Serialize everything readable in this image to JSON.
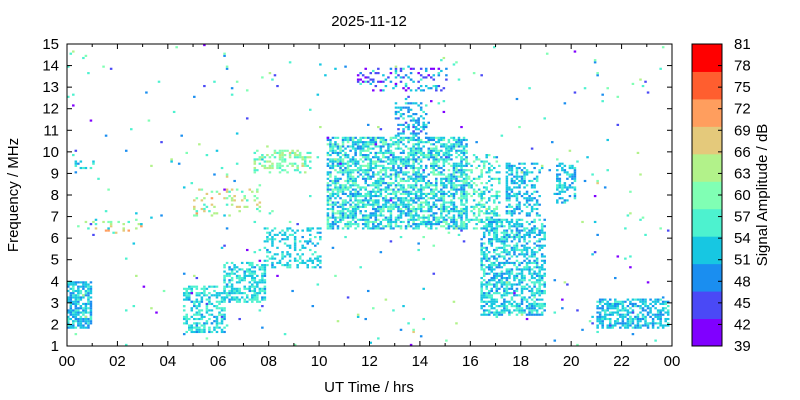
{
  "chart_data": {
    "type": "heatmap",
    "title": "2025-11-12",
    "xlabel": "UT Time / hrs",
    "ylabel": "Frequency / MHz",
    "colorbar_label": "Signal Amplitude / dB",
    "xlim": [
      0,
      24
    ],
    "ylim": [
      1,
      15
    ],
    "xticks": [
      "00",
      "02",
      "04",
      "06",
      "08",
      "10",
      "12",
      "14",
      "16",
      "18",
      "20",
      "22",
      "00"
    ],
    "yticks": [
      "1",
      "2",
      "3",
      "4",
      "5",
      "6",
      "7",
      "8",
      "9",
      "10",
      "11",
      "12",
      "13",
      "14",
      "15"
    ],
    "colorbar": {
      "ticks": [
        "39",
        "42",
        "45",
        "48",
        "51",
        "54",
        "57",
        "60",
        "63",
        "66",
        "69",
        "72",
        "75",
        "78",
        "81"
      ],
      "colors": [
        "#8000ff",
        "#4a49f6",
        "#1a8ef0",
        "#17c7e2",
        "#4df2cf",
        "#80ffb4",
        "#b2f28a",
        "#e4c97b",
        "#ff9e5e",
        "#ff5e2f",
        "#ff0000"
      ]
    },
    "clusters": [
      {
        "name": "early-low",
        "t": [
          0.0,
          0.9
        ],
        "f": [
          1.8,
          4.0
        ],
        "density": 0.75,
        "amp": [
          48,
          56
        ]
      },
      {
        "name": "scatter-09",
        "t": [
          0.3,
          1.3
        ],
        "f": [
          9.2,
          9.5
        ],
        "density": 0.35,
        "amp": [
          50,
          58
        ]
      },
      {
        "name": "scatter-06",
        "t": [
          1.0,
          3.2
        ],
        "f": [
          6.2,
          6.8
        ],
        "density": 0.18,
        "amp": [
          52,
          72
        ]
      },
      {
        "name": "rise-1",
        "t": [
          4.6,
          6.2
        ],
        "f": [
          1.6,
          3.8
        ],
        "density": 0.5,
        "amp": [
          50,
          58
        ]
      },
      {
        "name": "rise-2",
        "t": [
          6.2,
          7.8
        ],
        "f": [
          3.0,
          4.8
        ],
        "density": 0.55,
        "amp": [
          50,
          58
        ]
      },
      {
        "name": "rise-3",
        "t": [
          7.8,
          10.0
        ],
        "f": [
          4.6,
          6.4
        ],
        "density": 0.35,
        "amp": [
          50,
          56
        ]
      },
      {
        "name": "scatter-08",
        "t": [
          5.0,
          7.6
        ],
        "f": [
          7.0,
          8.2
        ],
        "density": 0.2,
        "amp": [
          54,
          70
        ]
      },
      {
        "name": "band-9",
        "t": [
          7.4,
          9.6
        ],
        "f": [
          9.0,
          10.0
        ],
        "density": 0.45,
        "amp": [
          54,
          66
        ]
      },
      {
        "name": "midday",
        "t": [
          10.3,
          15.8
        ],
        "f": [
          6.4,
          10.6
        ],
        "density": 0.62,
        "amp": [
          48,
          60
        ]
      },
      {
        "name": "mid-peak",
        "t": [
          13.0,
          14.2
        ],
        "f": [
          10.6,
          12.2
        ],
        "density": 0.4,
        "amp": [
          46,
          56
        ]
      },
      {
        "name": "late-upper",
        "t": [
          15.6,
          17.2
        ],
        "f": [
          6.4,
          9.8
        ],
        "density": 0.4,
        "amp": [
          50,
          62
        ]
      },
      {
        "name": "evening",
        "t": [
          16.4,
          19.0
        ],
        "f": [
          2.4,
          6.8
        ],
        "density": 0.58,
        "amp": [
          48,
          58
        ]
      },
      {
        "name": "evening-up",
        "t": [
          17.4,
          18.8
        ],
        "f": [
          7.0,
          9.4
        ],
        "density": 0.45,
        "amp": [
          48,
          56
        ]
      },
      {
        "name": "dusk",
        "t": [
          19.4,
          20.2
        ],
        "f": [
          7.6,
          9.4
        ],
        "density": 0.45,
        "amp": [
          48,
          56
        ]
      },
      {
        "name": "night-low",
        "t": [
          21.0,
          23.9
        ],
        "f": [
          1.8,
          3.2
        ],
        "density": 0.6,
        "amp": [
          48,
          56
        ]
      },
      {
        "name": "top-scatter",
        "t": [
          11.5,
          15.0
        ],
        "f": [
          12.8,
          13.8
        ],
        "density": 0.25,
        "amp": [
          40,
          56
        ]
      },
      {
        "name": "sparse",
        "t": [
          0.0,
          24.0
        ],
        "f": [
          1.0,
          15.0
        ],
        "density": 0.01,
        "amp": [
          40,
          66
        ]
      }
    ]
  }
}
